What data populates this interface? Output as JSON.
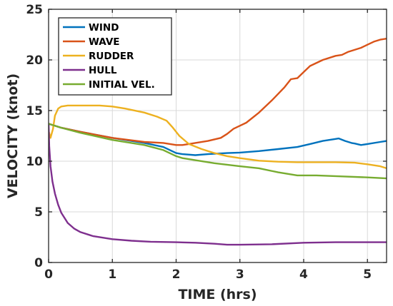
{
  "chart_data": {
    "type": "line",
    "title": "",
    "xlabel": "TIME (hrs)",
    "ylabel": "VELOCITY (knot)",
    "xlim": [
      0,
      5.3
    ],
    "ylim": [
      0,
      25
    ],
    "xticks": [
      0,
      1,
      2,
      3,
      4,
      5
    ],
    "yticks": [
      0,
      5,
      10,
      15,
      20,
      25
    ],
    "grid": true,
    "legend_position": "top-left",
    "series": [
      {
        "name": "WIND",
        "color": "#0072BD",
        "x": [
          0,
          0.2,
          0.5,
          1.0,
          1.5,
          1.8,
          2.0,
          2.1,
          2.3,
          2.5,
          2.8,
          3.0,
          3.3,
          3.6,
          3.9,
          4.1,
          4.3,
          4.5,
          4.55,
          4.65,
          4.75,
          4.8,
          4.9,
          5.0,
          5.2,
          5.3
        ],
        "y": [
          13.7,
          13.3,
          12.9,
          12.3,
          11.8,
          11.4,
          10.8,
          10.7,
          10.6,
          10.7,
          10.8,
          10.85,
          11.0,
          11.2,
          11.4,
          11.7,
          12.0,
          12.2,
          12.25,
          12.0,
          11.8,
          11.75,
          11.6,
          11.7,
          11.9,
          12.0
        ]
      },
      {
        "name": "WAVE",
        "color": "#D95319",
        "x": [
          0,
          0.2,
          0.5,
          1.0,
          1.5,
          1.8,
          2.0,
          2.1,
          2.2,
          2.3,
          2.5,
          2.7,
          2.8,
          2.9,
          3.0,
          3.1,
          3.3,
          3.5,
          3.7,
          3.8,
          3.9,
          4.0,
          4.1,
          4.3,
          4.5,
          4.6,
          4.7,
          4.9,
          5.0,
          5.1,
          5.2,
          5.3
        ],
        "y": [
          13.7,
          13.3,
          12.9,
          12.3,
          11.9,
          11.8,
          11.6,
          11.6,
          11.7,
          11.8,
          12.0,
          12.3,
          12.7,
          13.2,
          13.5,
          13.8,
          14.8,
          16.0,
          17.3,
          18.1,
          18.2,
          18.8,
          19.4,
          20.0,
          20.4,
          20.5,
          20.8,
          21.2,
          21.5,
          21.8,
          22.0,
          22.1
        ]
      },
      {
        "name": "RUDDER",
        "color": "#EDB120",
        "x": [
          0,
          0.03,
          0.07,
          0.1,
          0.15,
          0.2,
          0.3,
          0.5,
          0.8,
          1.0,
          1.2,
          1.5,
          1.7,
          1.85,
          1.95,
          2.05,
          2.2,
          2.4,
          2.6,
          2.8,
          3.0,
          3.3,
          3.6,
          3.9,
          4.2,
          4.5,
          4.8,
          5.0,
          5.2,
          5.3
        ],
        "y": [
          13.0,
          12.3,
          13.2,
          14.5,
          15.2,
          15.4,
          15.5,
          15.5,
          15.5,
          15.4,
          15.2,
          14.8,
          14.4,
          14.0,
          13.3,
          12.5,
          11.7,
          11.2,
          10.8,
          10.5,
          10.3,
          10.05,
          9.95,
          9.9,
          9.9,
          9.9,
          9.85,
          9.7,
          9.5,
          9.3
        ]
      },
      {
        "name": "HULL",
        "color": "#7E2F8E",
        "x": [
          0,
          0.01,
          0.03,
          0.06,
          0.1,
          0.15,
          0.2,
          0.3,
          0.4,
          0.5,
          0.7,
          1.0,
          1.3,
          1.6,
          2.0,
          2.3,
          2.6,
          2.8,
          3.0,
          3.5,
          4.0,
          4.5,
          5.0,
          5.3
        ],
        "y": [
          13.7,
          11.5,
          9.5,
          8.0,
          6.8,
          5.7,
          4.9,
          3.9,
          3.35,
          3.0,
          2.6,
          2.3,
          2.15,
          2.05,
          2.0,
          1.95,
          1.85,
          1.75,
          1.75,
          1.8,
          1.95,
          2.0,
          2.0,
          2.0
        ]
      },
      {
        "name": "INITIAL VEL.",
        "color": "#77AC30",
        "x": [
          0,
          0.2,
          0.5,
          1.0,
          1.5,
          1.8,
          2.0,
          2.1,
          2.3,
          2.6,
          3.0,
          3.3,
          3.6,
          3.9,
          4.2,
          4.6,
          5.0,
          5.3
        ],
        "y": [
          13.7,
          13.3,
          12.8,
          12.1,
          11.6,
          11.1,
          10.5,
          10.3,
          10.1,
          9.8,
          9.5,
          9.3,
          8.9,
          8.6,
          8.6,
          8.5,
          8.4,
          8.3
        ]
      }
    ]
  }
}
